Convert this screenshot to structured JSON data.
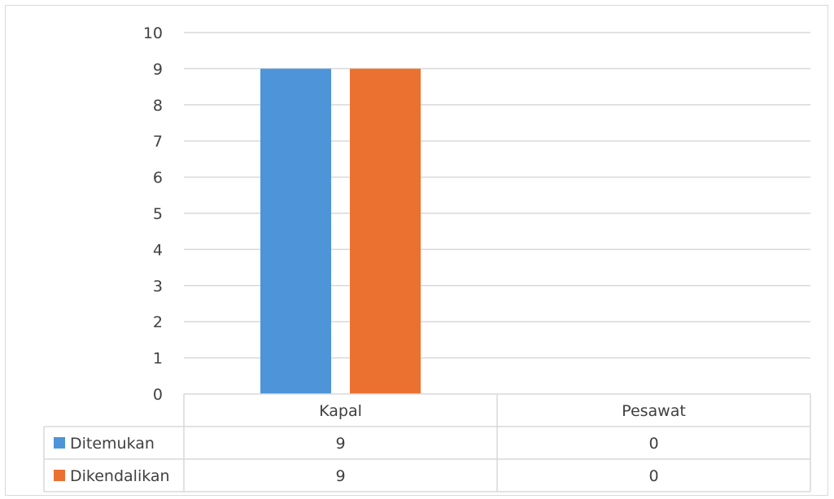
{
  "chart_data": {
    "type": "bar",
    "categories": [
      "Kapal",
      "Pesawat"
    ],
    "series": [
      {
        "name": "Ditemukan",
        "values": [
          9,
          0
        ],
        "color": "#4e94d8"
      },
      {
        "name": "Dikendalikan",
        "values": [
          9,
          0
        ],
        "color": "#ea7130"
      }
    ],
    "ylim": [
      0,
      10
    ],
    "yticks": [
      0,
      1,
      2,
      3,
      4,
      5,
      6,
      7,
      8,
      9,
      10
    ],
    "grid": true,
    "legend": "data-table",
    "gridline_color": "#d9d9d9"
  }
}
